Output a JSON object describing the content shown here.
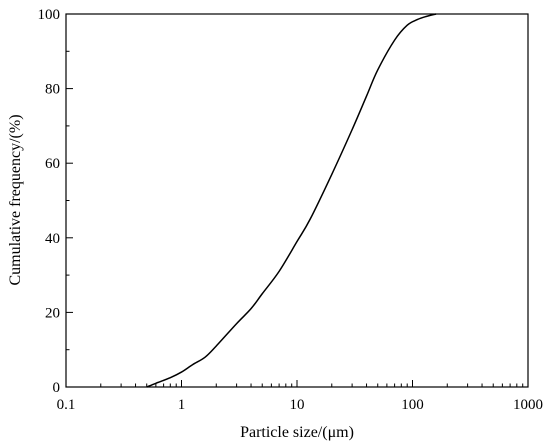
{
  "chart_data": {
    "type": "line",
    "title": "",
    "xlabel": "Particle size/(μm)",
    "ylabel": "Cumulative frequency/(%)",
    "xscale": "log",
    "xlim": [
      0.1,
      1000
    ],
    "ylim": [
      0,
      100
    ],
    "grid": false,
    "legend": "none",
    "x_ticks": [
      0.1,
      1,
      10,
      100,
      1000
    ],
    "x_tick_labels": [
      "0.1",
      "1",
      "10",
      "100",
      "1000"
    ],
    "y_ticks": [
      0,
      20,
      40,
      60,
      80,
      100
    ],
    "y_tick_labels": [
      "0",
      "20",
      "40",
      "60",
      "80",
      "100"
    ],
    "line_color": "#000000",
    "series": [
      {
        "x": [
          0.5,
          0.6,
          0.8,
          1.0,
          1.25,
          1.6,
          2.0,
          3.0,
          4.0,
          5.0,
          7.0,
          10.0,
          13.0,
          20.0,
          30.0,
          40.0,
          50.0,
          70.0,
          90.0,
          110.0,
          130.0,
          160.0
        ],
        "y": [
          0,
          1,
          2.5,
          4,
          6,
          8,
          11,
          17,
          21,
          25,
          31,
          39,
          45,
          57,
          69,
          78,
          85,
          93,
          97,
          98.5,
          99.3,
          100
        ]
      }
    ]
  }
}
